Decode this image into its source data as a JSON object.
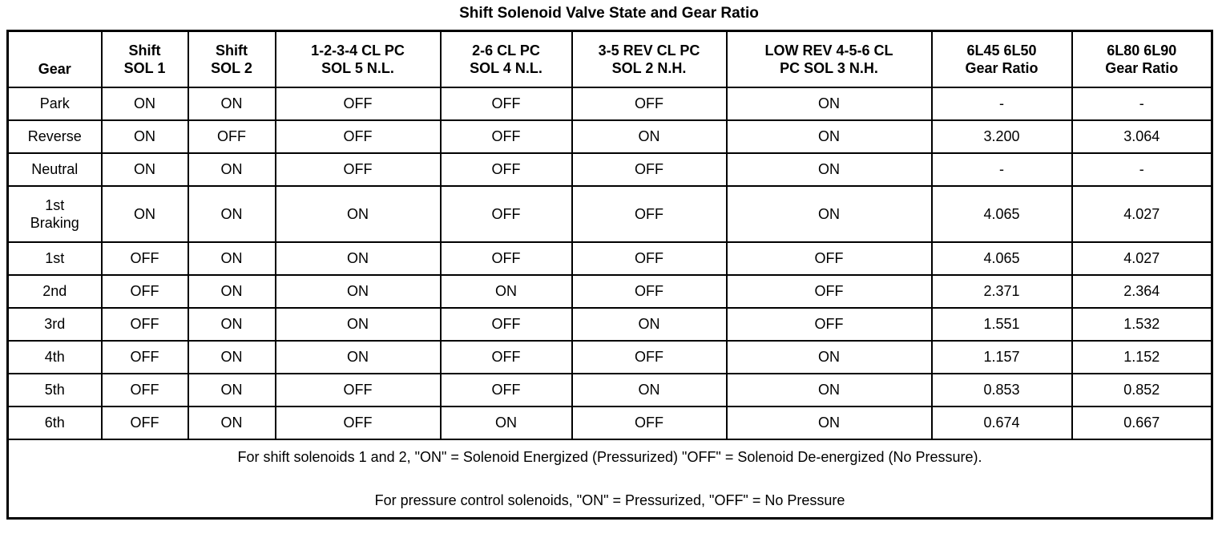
{
  "title": "Shift Solenoid Valve State and Gear Ratio",
  "table": {
    "columns": [
      {
        "lines": [
          "Gear"
        ]
      },
      {
        "lines": [
          "Shift",
          "SOL 1"
        ]
      },
      {
        "lines": [
          "Shift",
          "SOL 2"
        ]
      },
      {
        "lines": [
          "1-2-3-4 CL PC",
          "SOL 5 N.L."
        ]
      },
      {
        "lines": [
          "2-6 CL PC",
          "SOL 4 N.L."
        ]
      },
      {
        "lines": [
          "3-5 REV CL PC",
          "SOL 2 N.H."
        ]
      },
      {
        "lines": [
          "LOW REV 4-5-6 CL",
          "PC SOL 3 N.H."
        ]
      },
      {
        "lines": [
          "6L45 6L50",
          "Gear Ratio"
        ]
      },
      {
        "lines": [
          "6L80 6L90",
          "Gear Ratio"
        ]
      }
    ],
    "rows": [
      [
        "Park",
        "ON",
        "ON",
        "OFF",
        "OFF",
        "OFF",
        "ON",
        "-",
        "-"
      ],
      [
        "Reverse",
        "ON",
        "OFF",
        "OFF",
        "OFF",
        "ON",
        "ON",
        "3.200",
        "3.064"
      ],
      [
        "Neutral",
        "ON",
        "ON",
        "OFF",
        "OFF",
        "OFF",
        "ON",
        "-",
        "-"
      ],
      [
        "1st\nBraking",
        "ON",
        "ON",
        "ON",
        "OFF",
        "OFF",
        "ON",
        "4.065",
        "4.027"
      ],
      [
        "1st",
        "OFF",
        "ON",
        "ON",
        "OFF",
        "OFF",
        "OFF",
        "4.065",
        "4.027"
      ],
      [
        "2nd",
        "OFF",
        "ON",
        "ON",
        "ON",
        "OFF",
        "OFF",
        "2.371",
        "2.364"
      ],
      [
        "3rd",
        "OFF",
        "ON",
        "ON",
        "OFF",
        "ON",
        "OFF",
        "1.551",
        "1.532"
      ],
      [
        "4th",
        "OFF",
        "ON",
        "ON",
        "OFF",
        "OFF",
        "ON",
        "1.157",
        "1.152"
      ],
      [
        "5th",
        "OFF",
        "ON",
        "OFF",
        "OFF",
        "ON",
        "ON",
        "0.853",
        "0.852"
      ],
      [
        "6th",
        "OFF",
        "ON",
        "OFF",
        "ON",
        "OFF",
        "ON",
        "0.674",
        "0.667"
      ]
    ],
    "notes": [
      "For shift solenoids 1 and 2, \"ON\" = Solenoid Energized (Pressurized) \"OFF\" = Solenoid De-energized (No Pressure).",
      "For pressure control solenoids, \"ON\" = Pressurized, \"OFF\" = No Pressure"
    ]
  }
}
